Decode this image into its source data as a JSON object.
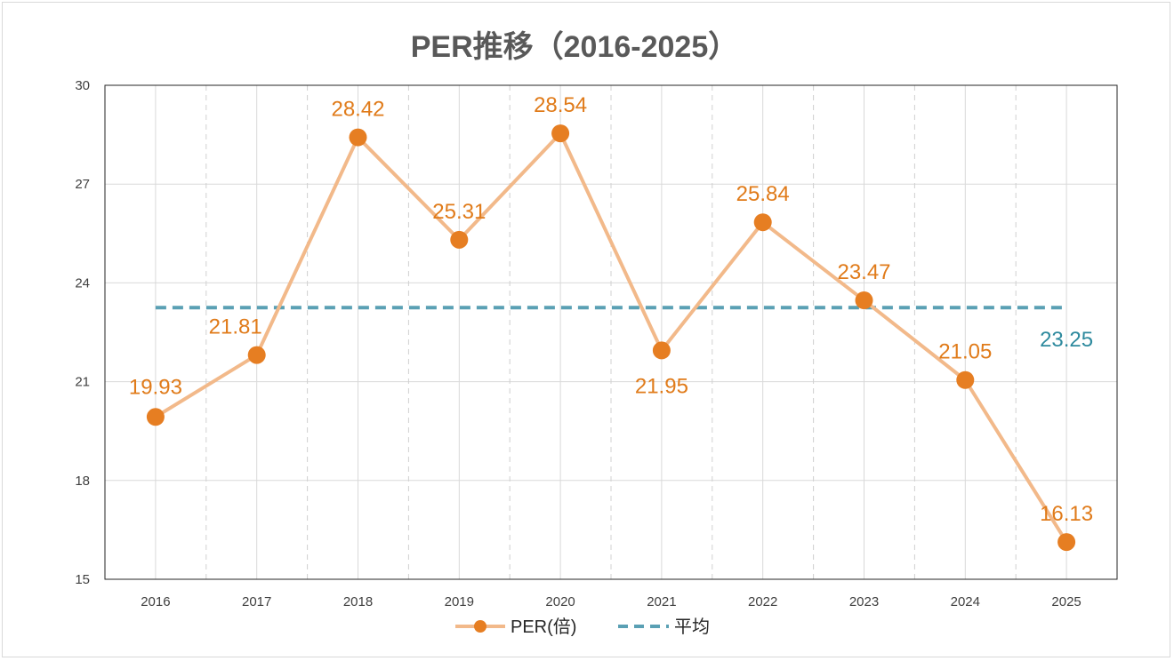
{
  "chart_data": {
    "type": "line",
    "title": "PER推移（2016-2025）",
    "categories": [
      "2016",
      "2017",
      "2018",
      "2019",
      "2020",
      "2021",
      "2022",
      "2023",
      "2024",
      "2025"
    ],
    "series": [
      {
        "name": "PER(倍)",
        "values": [
          19.93,
          21.81,
          28.42,
          25.31,
          28.54,
          21.95,
          25.84,
          23.47,
          21.05,
          16.13
        ],
        "labels": [
          "19.93",
          "21.81",
          "28.42",
          "25.31",
          "28.54",
          "21.95",
          "25.84",
          "23.47",
          "21.05",
          "16.13"
        ],
        "line_color": "#f2b98a",
        "marker_color": "#e67e22"
      },
      {
        "name": "平均",
        "values": [
          23.25,
          23.25,
          23.25,
          23.25,
          23.25,
          23.25,
          23.25,
          23.25,
          23.25,
          23.25
        ],
        "label": "23.25",
        "style": "dashed",
        "line_color": "#5aa0b4"
      }
    ],
    "ylim": [
      15,
      30
    ],
    "yticks": [
      "15",
      "18",
      "21",
      "24",
      "27",
      "30"
    ],
    "xlabel": "",
    "ylabel": "",
    "grid": true,
    "legend": "bottom-center"
  }
}
